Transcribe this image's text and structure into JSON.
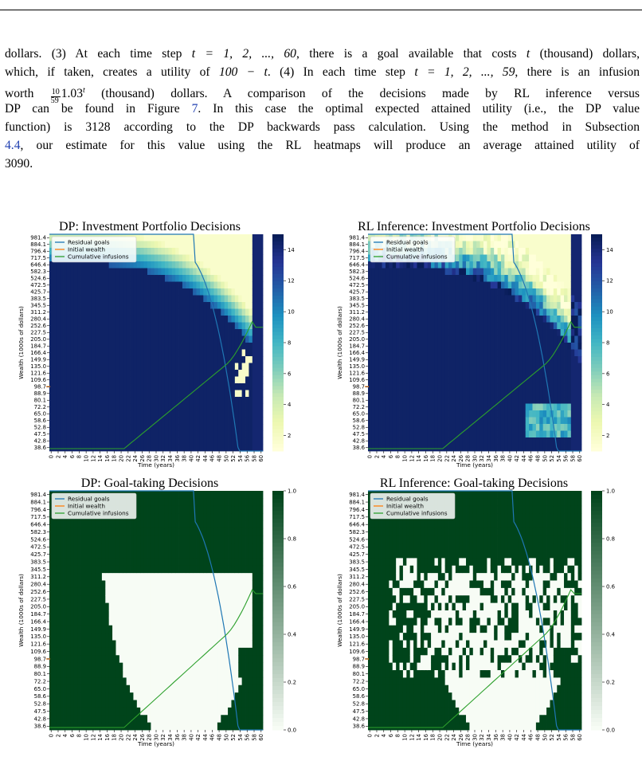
{
  "paragraph": {
    "l1_a": "dollars. (3) At each time step ",
    "l1_math": "t = 1, 2, ..., 60",
    "l1_b": ", there is a goal available that costs ",
    "l1_t": "t",
    "l1_c": " (thousand) dollars,",
    "l2_a": "which, if taken, creates a utility of ",
    "l2_math": "100 − t",
    "l2_b": ". (4) In each time step ",
    "l2_math2": "t = 1, 2, ..., 59",
    "l2_c": ", there is an infusion",
    "l3_a": "worth ",
    "l3_num": "10",
    "l3_den": "59",
    "l3_base": "1.03",
    "l3_exp": "t",
    "l3_b": " (thousand) dollars.  A comparison of the decisions made by RL inference versus",
    "l4_a": "DP can be found in Figure ",
    "l4_fig": "7",
    "l4_b": ".  In this case the optimal expected attained utility (i.e., the DP value",
    "l5": "function) is 3128 according to the DP backwards pass calculation. Using the method in Subsection",
    "l6_sub": "4.4",
    "l6_b": ", our estimate for this value using the RL heatmaps will produce an average attained utility of",
    "l7": "3090."
  },
  "colors": {
    "blues_cmap": [
      "#ffffd9",
      "#edf8b1",
      "#c7e9b4",
      "#7fcdbb",
      "#41b6c4",
      "#1d91c0",
      "#225ea8",
      "#253494",
      "#081d58"
    ],
    "greens_dark": "#00441b",
    "greens_light": "#f7fcf5",
    "residual_goals": "#1f77b4",
    "initial_wealth": "#ff7f0e",
    "cumulative_infusions": "#2ca02c"
  },
  "charts": {
    "dp_portfolio": {
      "title": "DP: Investment Portfolio Decisions",
      "xlabel": "Time (years)",
      "ylabel": "Wealth (1000s of dollars)",
      "cbar_ticks": [
        "14",
        "12",
        "10",
        "8",
        "6",
        "4",
        "2"
      ]
    },
    "rl_portfolio": {
      "title": "RL Inference: Investment Portfolio Decisions",
      "xlabel": "Time (years)",
      "ylabel": "Wealth (1000s of dollars)",
      "cbar_ticks": [
        "14",
        "12",
        "10",
        "8",
        "6",
        "4",
        "2"
      ]
    },
    "dp_goals": {
      "title": "DP: Goal-taking Decisions",
      "xlabel": "Time (years)",
      "ylabel": "Wealth (1000s of dollars)",
      "cbar_ticks": [
        "1.0",
        "0.8",
        "0.6",
        "0.4",
        "0.2",
        "0.0"
      ]
    },
    "rl_goals": {
      "title": "RL Inference: Goal-taking Decisions",
      "xlabel": "Time (years)",
      "ylabel": "Wealth (1000s of dollars)",
      "cbar_ticks": [
        "1.0",
        "0.8",
        "0.6",
        "0.4",
        "0.2",
        "0.0"
      ]
    }
  },
  "chart_data": [
    {
      "type": "heatmap",
      "title": "DP: Investment Portfolio Decisions",
      "xlabel": "Time (years)",
      "ylabel": "Wealth (1000s of dollars)",
      "x_ticks": [
        "0",
        "2",
        "4",
        "6",
        "8",
        "10",
        "12",
        "14",
        "16",
        "18",
        "20",
        "22",
        "24",
        "26",
        "28",
        "30",
        "32",
        "34",
        "36",
        "38",
        "40",
        "42",
        "44",
        "46",
        "48",
        "50",
        "52",
        "54",
        "56",
        "58",
        "60"
      ],
      "y_ticks": [
        "981.4",
        "884.1",
        "796.4",
        "717.5",
        "646.4",
        "582.3",
        "524.6",
        "472.5",
        "425.7",
        "383.5",
        "345.5",
        "311.2",
        "280.4",
        "252.6",
        "227.5",
        "205.0",
        "184.7",
        "166.4",
        "149.9",
        "135.0",
        "121.6",
        "109.6",
        "98.7",
        "88.9",
        "80.1",
        "72.2",
        "65.0",
        "58.6",
        "52.8",
        "47.5",
        "42.8",
        "38.6"
      ],
      "colorbar": {
        "min": 1,
        "max": 15,
        "ticks": [
          2,
          4,
          6,
          8,
          10,
          12,
          14
        ]
      },
      "legend": [
        "Residual goals",
        "Initial wealth",
        "Cumulative infusions"
      ],
      "legend_position": "top-left"
    },
    {
      "type": "heatmap",
      "title": "RL Inference: Investment Portfolio Decisions",
      "xlabel": "Time (years)",
      "ylabel": "Wealth (1000s of dollars)",
      "x_ticks": [
        "0",
        "2",
        "4",
        "6",
        "8",
        "10",
        "12",
        "14",
        "16",
        "18",
        "20",
        "22",
        "24",
        "26",
        "28",
        "30",
        "32",
        "34",
        "36",
        "38",
        "40",
        "42",
        "44",
        "46",
        "48",
        "50",
        "52",
        "54",
        "56",
        "58",
        "60"
      ],
      "y_ticks": [
        "981.4",
        "884.1",
        "796.4",
        "717.5",
        "646.4",
        "582.3",
        "524.6",
        "472.5",
        "425.7",
        "383.5",
        "345.5",
        "311.2",
        "280.4",
        "252.6",
        "227.5",
        "205.0",
        "184.7",
        "166.4",
        "149.9",
        "135.0",
        "121.6",
        "109.6",
        "98.7",
        "88.9",
        "80.1",
        "72.2",
        "65.0",
        "58.6",
        "52.8",
        "47.5",
        "42.8",
        "38.6"
      ],
      "colorbar": {
        "min": 1,
        "max": 15,
        "ticks": [
          2,
          4,
          6,
          8,
          10,
          12,
          14
        ]
      },
      "legend": [
        "Residual goals",
        "Initial wealth",
        "Cumulative infusions"
      ],
      "legend_position": "top-left"
    },
    {
      "type": "heatmap",
      "title": "DP: Goal-taking Decisions",
      "xlabel": "Time (years)",
      "ylabel": "Wealth (1000s of dollars)",
      "x_ticks": [
        "0",
        "2",
        "4",
        "6",
        "8",
        "10",
        "12",
        "14",
        "16",
        "18",
        "20",
        "22",
        "24",
        "26",
        "28",
        "30",
        "32",
        "34",
        "36",
        "38",
        "40",
        "42",
        "44",
        "46",
        "48",
        "50",
        "52",
        "54",
        "56",
        "58",
        "60"
      ],
      "y_ticks": [
        "981.4",
        "884.1",
        "796.4",
        "717.5",
        "646.4",
        "582.3",
        "524.6",
        "472.5",
        "425.7",
        "383.5",
        "345.5",
        "311.2",
        "280.4",
        "252.6",
        "227.5",
        "205.0",
        "184.7",
        "166.4",
        "149.9",
        "135.0",
        "121.6",
        "109.6",
        "98.7",
        "88.9",
        "80.1",
        "72.2",
        "65.0",
        "58.6",
        "52.8",
        "47.5",
        "42.8",
        "38.6"
      ],
      "colorbar": {
        "min": 0.0,
        "max": 1.0,
        "ticks": [
          0.0,
          0.2,
          0.4,
          0.6,
          0.8,
          1.0
        ]
      },
      "legend": [
        "Residual goals",
        "Initial wealth",
        "Cumulative infusions"
      ],
      "legend_position": "top-left"
    },
    {
      "type": "heatmap",
      "title": "RL Inference: Goal-taking Decisions",
      "xlabel": "Time (years)",
      "ylabel": "Wealth (1000s of dollars)",
      "x_ticks": [
        "0",
        "2",
        "4",
        "6",
        "8",
        "10",
        "12",
        "14",
        "16",
        "18",
        "20",
        "22",
        "24",
        "26",
        "28",
        "30",
        "32",
        "34",
        "36",
        "38",
        "40",
        "42",
        "44",
        "46",
        "48",
        "50",
        "52",
        "54",
        "56",
        "58",
        "60"
      ],
      "y_ticks": [
        "981.4",
        "884.1",
        "796.4",
        "717.5",
        "646.4",
        "582.3",
        "524.6",
        "472.5",
        "425.7",
        "383.5",
        "345.5",
        "311.2",
        "280.4",
        "252.6",
        "227.5",
        "205.0",
        "184.7",
        "166.4",
        "149.9",
        "135.0",
        "121.6",
        "109.6",
        "98.7",
        "88.9",
        "80.1",
        "72.2",
        "65.0",
        "58.6",
        "52.8",
        "47.5",
        "42.8",
        "38.6"
      ],
      "colorbar": {
        "min": 0.0,
        "max": 1.0,
        "ticks": [
          0.0,
          0.2,
          0.4,
          0.6,
          0.8,
          1.0
        ]
      },
      "legend": [
        "Residual goals",
        "Initial wealth",
        "Cumulative infusions"
      ],
      "legend_position": "top-left"
    }
  ]
}
